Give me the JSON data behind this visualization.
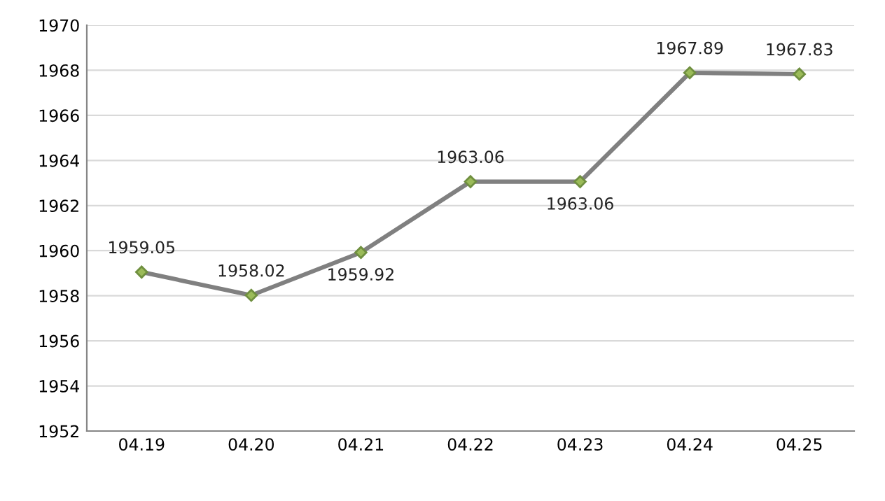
{
  "chart_data": {
    "type": "line",
    "categories": [
      "04.19",
      "04.20",
      "04.21",
      "04.22",
      "04.23",
      "04.24",
      "04.25"
    ],
    "series": [
      {
        "color": "#808080",
        "values": [
          1959.05,
          1958.02,
          1959.92,
          1963.06,
          1963.06,
          1967.89,
          1967.83
        ]
      }
    ],
    "ylim": [
      1952,
      1970
    ],
    "yticks": [
      1952,
      1954,
      1956,
      1958,
      1960,
      1962,
      1964,
      1966,
      1968,
      1970
    ],
    "grid": "y",
    "marker": "diamond",
    "line_style": "solid",
    "data_labels": true,
    "legend": false
  }
}
